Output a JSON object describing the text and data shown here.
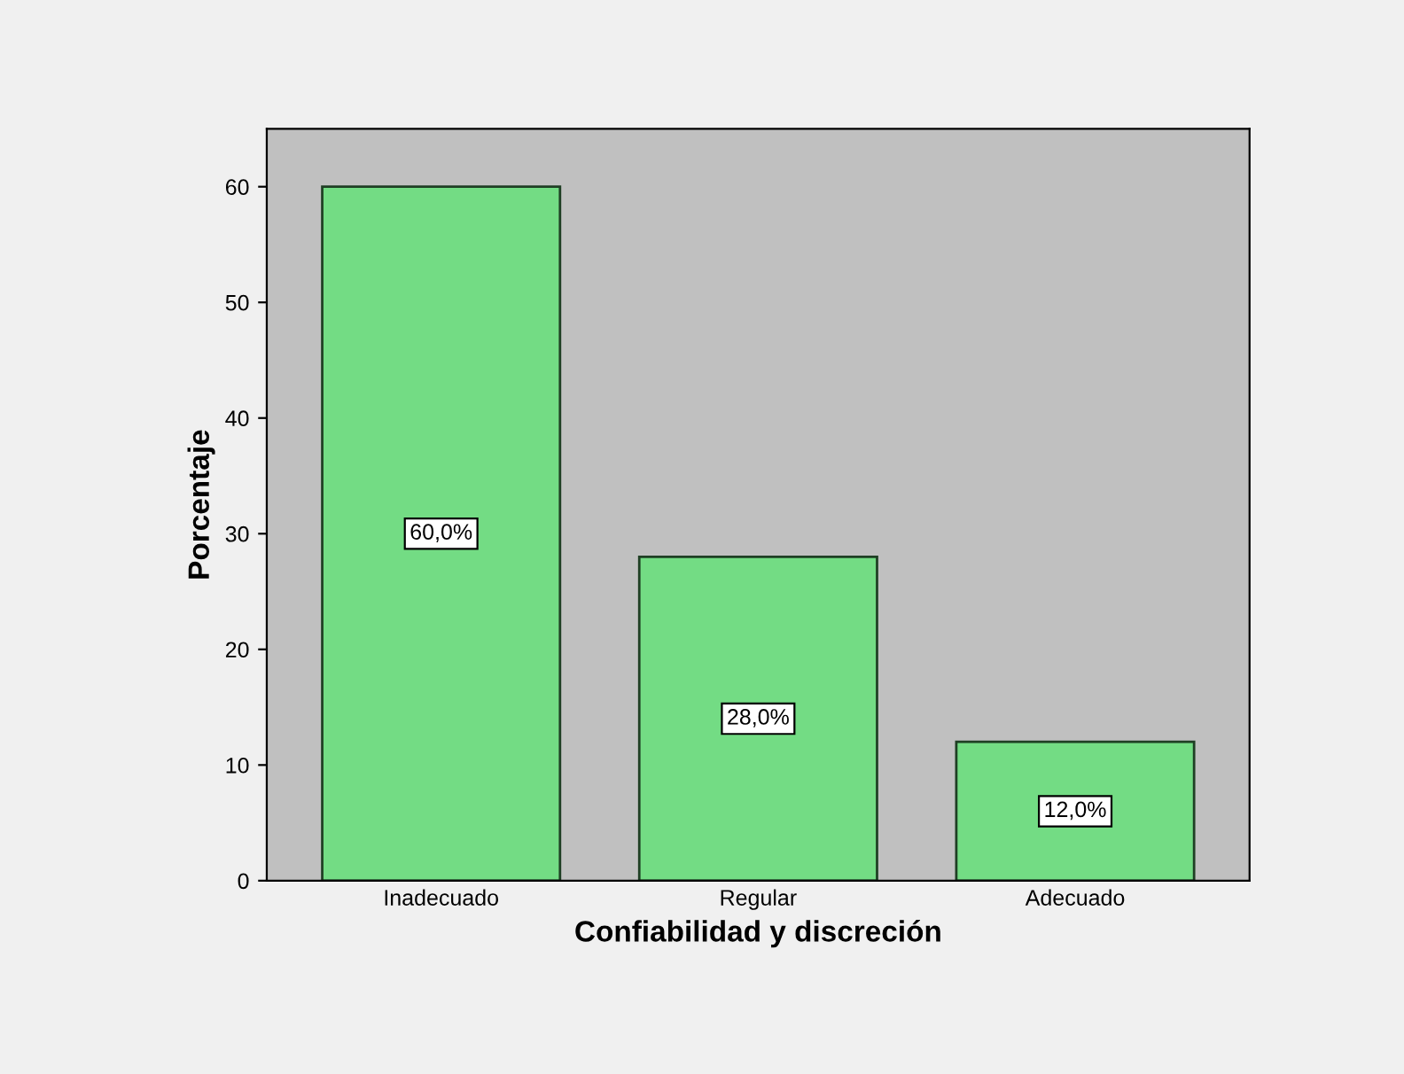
{
  "chart_data": {
    "type": "bar",
    "xlabel": "Confiabilidad y discreción",
    "ylabel": "Porcentaje",
    "categories": [
      "Inadecuado",
      "Regular",
      "Adecuado"
    ],
    "values": [
      60,
      28,
      12
    ],
    "value_labels": [
      "60,0%",
      "28,0%",
      "12,0%"
    ],
    "color": "#73dc84",
    "ylim": [
      0,
      65
    ],
    "yticks": [
      0,
      10,
      20,
      30,
      40,
      50,
      60
    ],
    "grid": false
  }
}
